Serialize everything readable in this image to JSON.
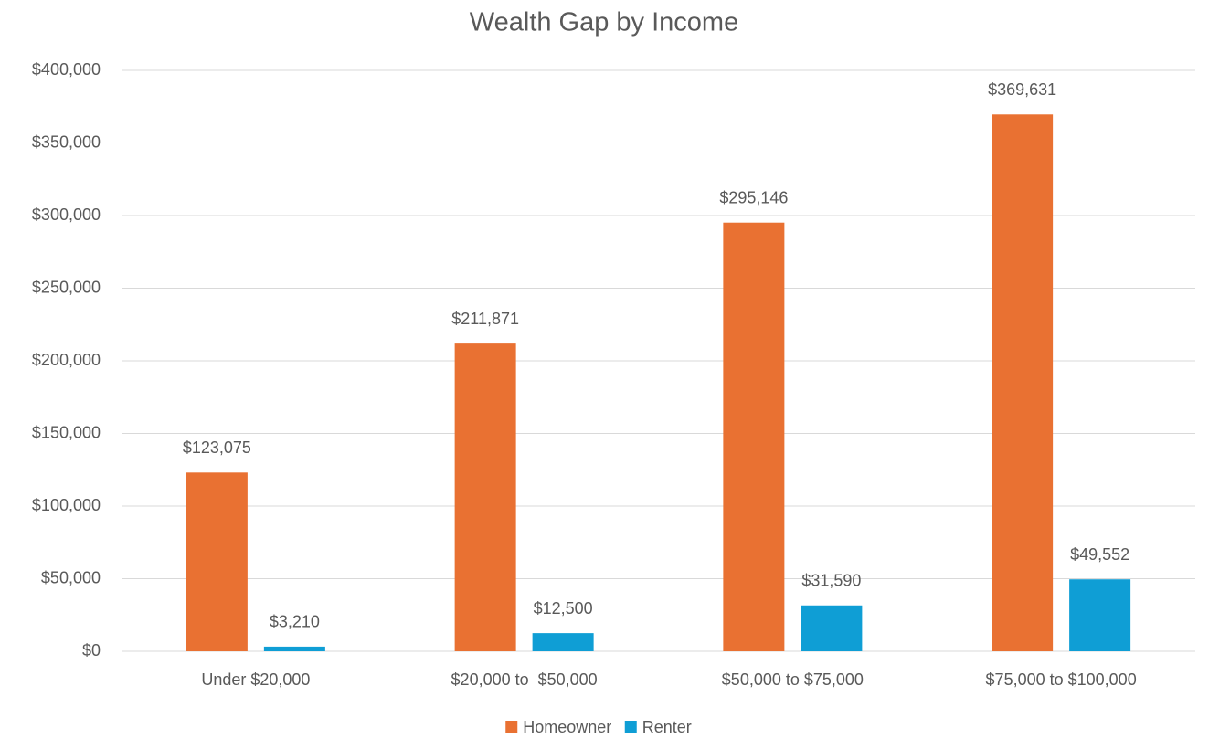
{
  "chart_data": {
    "type": "bar",
    "title": "Wealth Gap by Income",
    "categories": [
      "Under $20,000",
      "$20,000 to  $50,000",
      "$50,000 to $75,000",
      "$75,000 to $100,000"
    ],
    "series": [
      {
        "name": "Homeowner",
        "color": "#e97132",
        "values": [
          123075,
          211871,
          295146,
          369631
        ],
        "value_labels": [
          "$123,075",
          "$211,871",
          "$295,146",
          "$369,631"
        ]
      },
      {
        "name": "Renter",
        "color": "#0f9ed5",
        "values": [
          3210,
          12500,
          31590,
          49552
        ],
        "value_labels": [
          "$3,210",
          "$12,500",
          "$31,590",
          "$49,552"
        ]
      }
    ],
    "ylim": [
      0,
      400000
    ],
    "yticks": [
      {
        "value": 0,
        "label": "$0"
      },
      {
        "value": 50000,
        "label": "$50,000"
      },
      {
        "value": 100000,
        "label": "$100,000"
      },
      {
        "value": 150000,
        "label": "$150,000"
      },
      {
        "value": 200000,
        "label": "$200,000"
      },
      {
        "value": 250000,
        "label": "$250,000"
      },
      {
        "value": 300000,
        "label": "$300,000"
      },
      {
        "value": 350000,
        "label": "$350,000"
      },
      {
        "value": 400000,
        "label": "$400,000"
      }
    ],
    "grid": true,
    "legend": "bottom"
  }
}
